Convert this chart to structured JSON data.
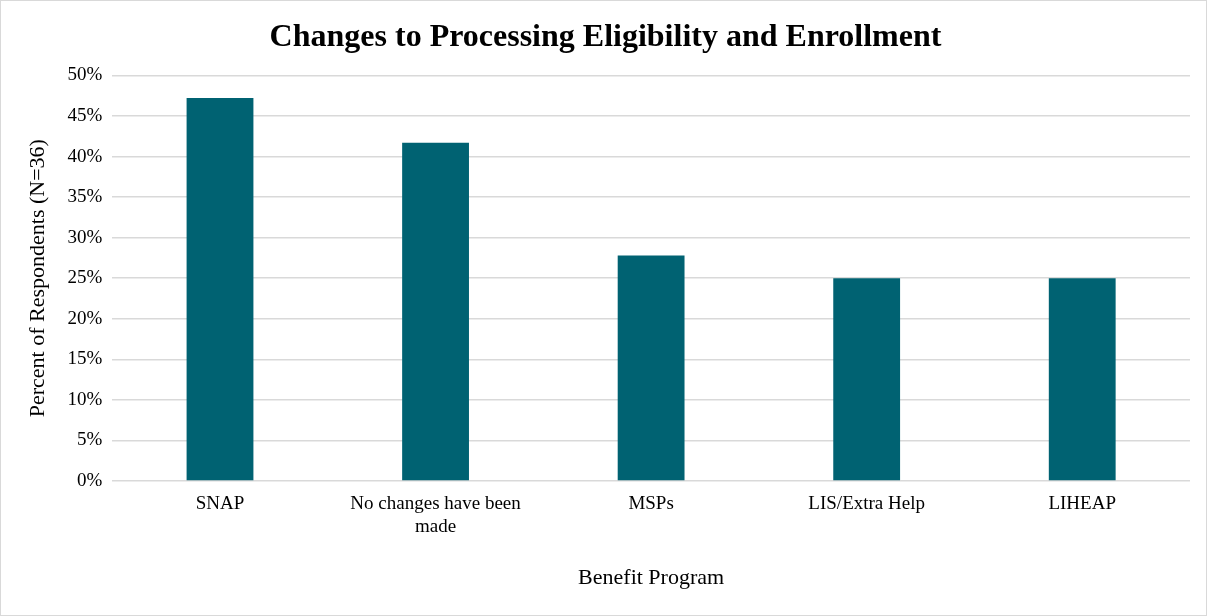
{
  "chart_data": {
    "type": "bar",
    "title": "Changes to Processing Eligibility and Enrollment",
    "xlabel": "Benefit Program",
    "ylabel": "Percent of Respondents (N=36)",
    "categories": [
      "SNAP",
      "No changes have been made",
      "MSPs",
      "LIS/Extra Help",
      "LIHEAP"
    ],
    "values": [
      47.2,
      41.7,
      27.8,
      25,
      25
    ],
    "color": "#006272",
    "ylim": [
      0,
      50
    ],
    "yticks": [
      {
        "value": 0,
        "label": "0%"
      },
      {
        "value": 5,
        "label": "5%"
      },
      {
        "value": 10,
        "label": "10%"
      },
      {
        "value": 15,
        "label": "15%"
      },
      {
        "value": 20,
        "label": "20%"
      },
      {
        "value": 25,
        "label": "25%"
      },
      {
        "value": 30,
        "label": "30%"
      },
      {
        "value": 35,
        "label": "35%"
      },
      {
        "value": 40,
        "label": "40%"
      },
      {
        "value": 45,
        "label": "45%"
      },
      {
        "value": 50,
        "label": "50%"
      }
    ],
    "grid": "y",
    "legend": false
  }
}
